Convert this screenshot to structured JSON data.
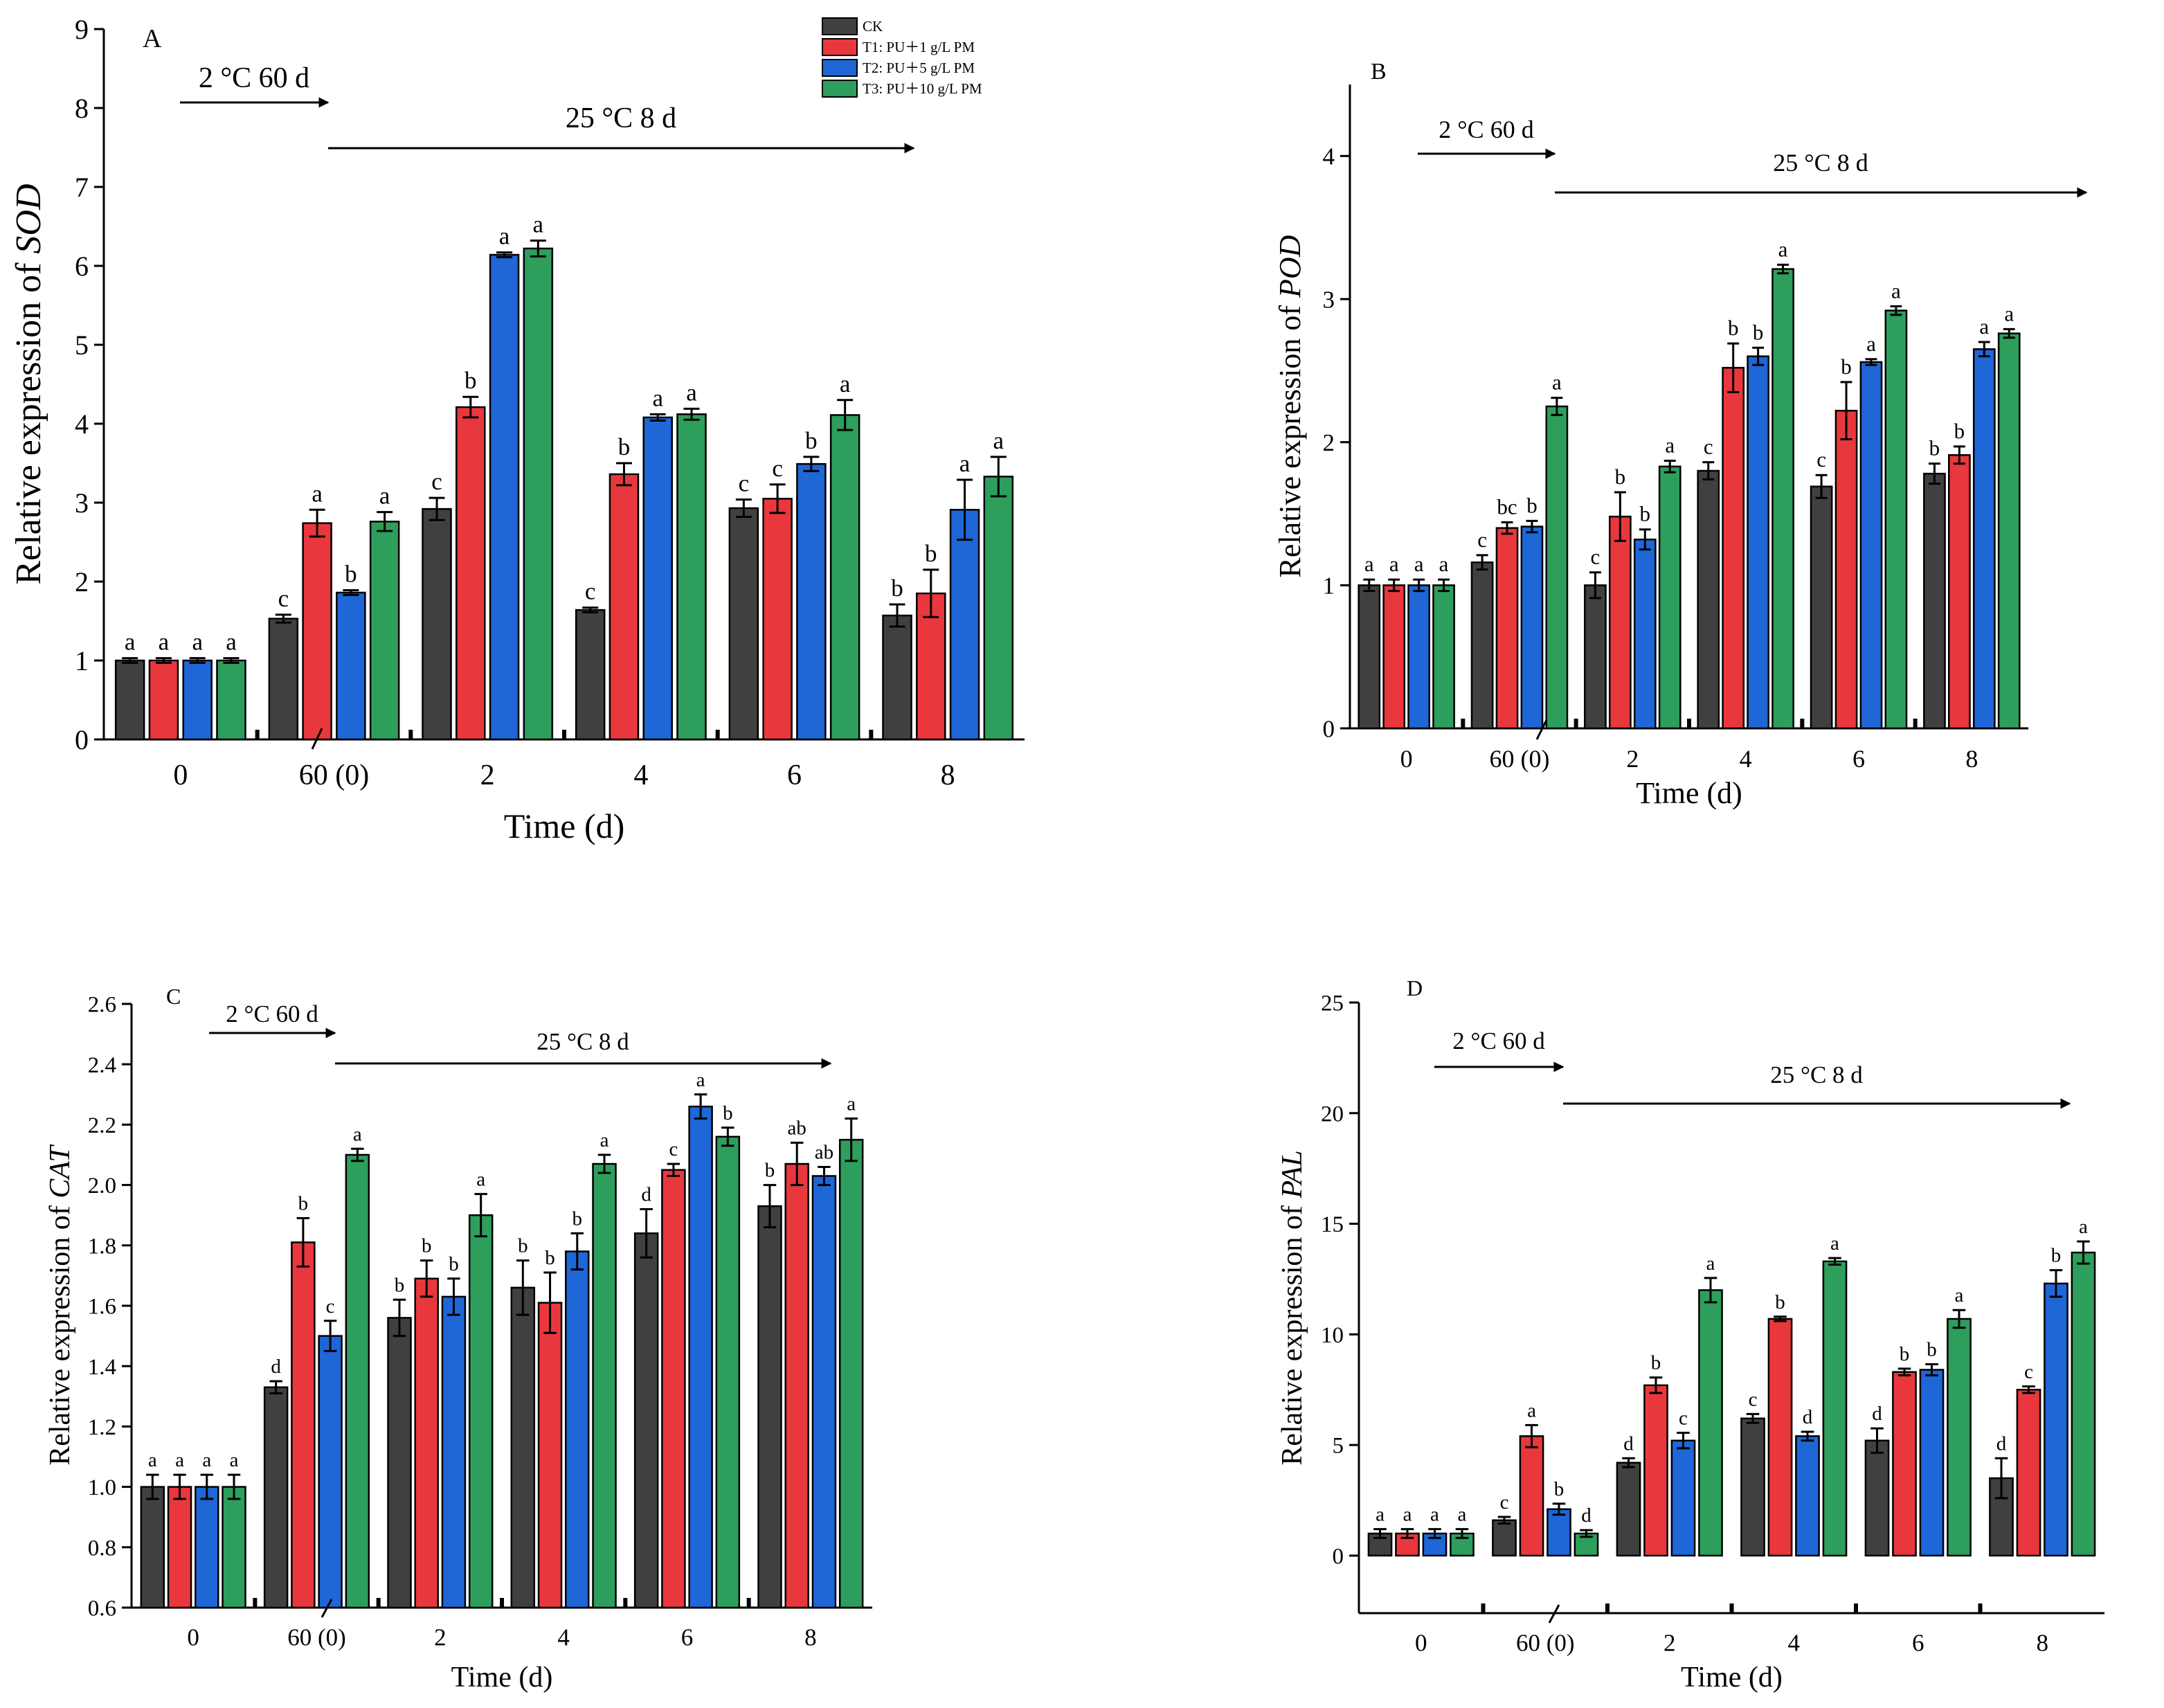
{
  "legend": {
    "items": [
      {
        "label": "CK",
        "color": "#404040"
      },
      {
        "label": "T1: PU＋1 g/L PM",
        "color": "#e8383d"
      },
      {
        "label": "T2: PU＋5 g/L PM",
        "color": "#1f66d6"
      },
      {
        "label": "T3: PU＋10 g/L PM",
        "color": "#2e9e5c"
      }
    ]
  },
  "chart_data": [
    {
      "type": "bar",
      "panel": "A",
      "ylabel_prefix": "Relative expression of ",
      "ylabel_gene": "SOD",
      "xlabel": "Time (d)",
      "categories": [
        "0",
        "60 (0)",
        "2",
        "4",
        "6",
        "8"
      ],
      "ylim": [
        0,
        9
      ],
      "yticks": [
        0,
        1,
        2,
        3,
        4,
        5,
        6,
        7,
        8,
        9
      ],
      "ytick_labels": [
        "0",
        "1",
        "2",
        "3",
        "4",
        "5",
        "6",
        "7",
        "8",
        "9"
      ],
      "annotation_cold": "2 °C 60 d",
      "annotation_warm": "25 °C 8 d",
      "series": [
        {
          "name": "CK",
          "values": [
            1.0,
            1.53,
            2.92,
            1.64,
            2.93,
            1.57
          ],
          "errors": [
            0.03,
            0.05,
            0.14,
            0.03,
            0.11,
            0.14
          ],
          "letters": [
            "a",
            "c",
            "c",
            "c",
            "c",
            "b"
          ]
        },
        {
          "name": "T1: PU＋1 g/L PM",
          "values": [
            1.0,
            2.74,
            4.21,
            3.36,
            3.05,
            1.85
          ],
          "errors": [
            0.03,
            0.17,
            0.13,
            0.14,
            0.18,
            0.3
          ],
          "letters": [
            "a",
            "a",
            "b",
            "b",
            "c",
            "b"
          ]
        },
        {
          "name": "T2: PU＋5 g/L PM",
          "values": [
            1.0,
            1.86,
            6.14,
            4.08,
            3.49,
            2.91
          ],
          "errors": [
            0.03,
            0.03,
            0.03,
            0.04,
            0.09,
            0.38
          ],
          "letters": [
            "a",
            "b",
            "a",
            "a",
            "b",
            "a"
          ]
        },
        {
          "name": "T3: PU＋10 g/L PM",
          "values": [
            1.0,
            2.76,
            6.22,
            4.12,
            4.11,
            3.33
          ],
          "errors": [
            0.03,
            0.12,
            0.1,
            0.07,
            0.19,
            0.25
          ],
          "letters": [
            "a",
            "a",
            "a",
            "a",
            "a",
            "a"
          ]
        }
      ]
    },
    {
      "type": "bar",
      "panel": "B",
      "ylabel_prefix": "Relative expression of ",
      "ylabel_gene": "POD",
      "xlabel": "Time (d)",
      "categories": [
        "0",
        "60 (0)",
        "2",
        "4",
        "6",
        "8"
      ],
      "ylim": [
        0,
        4.5
      ],
      "yticks": [
        0,
        1,
        2,
        3,
        4
      ],
      "ytick_labels": [
        "0",
        "1",
        "2",
        "3",
        "4"
      ],
      "annotation_cold": "2 °C 60 d",
      "annotation_warm": "25 °C 8 d",
      "series": [
        {
          "name": "CK",
          "values": [
            1.0,
            1.16,
            1.0,
            1.8,
            1.69,
            1.78
          ],
          "errors": [
            0.04,
            0.05,
            0.09,
            0.06,
            0.08,
            0.07
          ],
          "letters": [
            "a",
            "c",
            "c",
            "c",
            "c",
            "b"
          ]
        },
        {
          "name": "T1: PU＋1 g/L PM",
          "values": [
            1.0,
            1.4,
            1.48,
            2.52,
            2.22,
            1.91
          ],
          "errors": [
            0.04,
            0.04,
            0.17,
            0.17,
            0.2,
            0.06
          ],
          "letters": [
            "a",
            "bc",
            "b",
            "b",
            "b",
            "b"
          ]
        },
        {
          "name": "T2: PU＋5 g/L PM",
          "values": [
            1.0,
            1.41,
            1.32,
            2.6,
            2.56,
            2.65
          ],
          "errors": [
            0.04,
            0.04,
            0.07,
            0.06,
            0.02,
            0.05
          ],
          "letters": [
            "a",
            "b",
            "b",
            "b",
            "a",
            "a"
          ]
        },
        {
          "name": "T3: PU＋10 g/L PM",
          "values": [
            1.0,
            2.25,
            1.83,
            3.21,
            2.92,
            2.76
          ],
          "errors": [
            0.04,
            0.06,
            0.04,
            0.03,
            0.03,
            0.03
          ],
          "letters": [
            "a",
            "a",
            "a",
            "a",
            "a",
            "a"
          ]
        }
      ]
    },
    {
      "type": "bar",
      "panel": "C",
      "ylabel_prefix": "Relative expression of ",
      "ylabel_gene": "CAT",
      "xlabel": "Time (d)",
      "categories": [
        "0",
        "60 (0)",
        "2",
        "4",
        "6",
        "8"
      ],
      "ylim": [
        0.6,
        2.6
      ],
      "yticks": [
        0.6,
        0.8,
        1.0,
        1.2,
        1.4,
        1.6,
        1.8,
        2.0,
        2.2,
        2.4,
        2.6
      ],
      "ytick_labels": [
        "0.6",
        "0.8",
        "1.0",
        "1.2",
        "1.4",
        "1.6",
        "1.8",
        "2.0",
        "2.2",
        "2.4",
        "2.6"
      ],
      "annotation_cold": "2 °C 60 d",
      "annotation_warm": "25 °C 8 d",
      "series": [
        {
          "name": "CK",
          "values": [
            1.0,
            1.33,
            1.56,
            1.66,
            1.84,
            1.93
          ],
          "errors": [
            0.04,
            0.02,
            0.06,
            0.09,
            0.08,
            0.07
          ],
          "letters": [
            "a",
            "d",
            "b",
            "b",
            "d",
            "b"
          ]
        },
        {
          "name": "T1: PU＋1 g/L PM",
          "values": [
            1.0,
            1.81,
            1.69,
            1.61,
            2.05,
            2.07
          ],
          "errors": [
            0.04,
            0.08,
            0.06,
            0.1,
            0.02,
            0.07
          ],
          "letters": [
            "a",
            "b",
            "b",
            "b",
            "c",
            "ab"
          ]
        },
        {
          "name": "T2: PU＋5 g/L PM",
          "values": [
            1.0,
            1.5,
            1.63,
            1.78,
            2.26,
            2.03
          ],
          "errors": [
            0.04,
            0.05,
            0.06,
            0.06,
            0.04,
            0.03
          ],
          "letters": [
            "a",
            "c",
            "b",
            "b",
            "a",
            "ab"
          ]
        },
        {
          "name": "T3: PU＋10 g/L PM",
          "values": [
            1.0,
            2.1,
            1.9,
            2.07,
            2.16,
            2.15
          ],
          "errors": [
            0.04,
            0.02,
            0.07,
            0.03,
            0.03,
            0.07
          ],
          "letters": [
            "a",
            "a",
            "a",
            "a",
            "b",
            "a"
          ]
        }
      ]
    },
    {
      "type": "bar",
      "panel": "D",
      "ylabel_prefix": "Relative expression of ",
      "ylabel_gene": "PAL",
      "xlabel": "Time (d)",
      "categories": [
        "0",
        "60 (0)",
        "2",
        "4",
        "6",
        "8"
      ],
      "ylim": [
        -2.6,
        25
      ],
      "yticks": [
        0,
        5,
        10,
        15,
        20,
        25
      ],
      "ytick_labels": [
        "0",
        "5",
        "10",
        "15",
        "20",
        "25"
      ],
      "annotation_cold": "2 °C 60 d",
      "annotation_warm": "25 °C 8 d",
      "series": [
        {
          "name": "CK",
          "values": [
            1.0,
            1.6,
            4.2,
            6.2,
            5.2,
            3.5
          ],
          "errors": [
            0.2,
            0.15,
            0.2,
            0.2,
            0.55,
            0.9
          ],
          "letters": [
            "a",
            "c",
            "d",
            "c",
            "d",
            "d"
          ]
        },
        {
          "name": "T1: PU＋1 g/L PM",
          "values": [
            1.0,
            5.4,
            7.7,
            10.7,
            8.3,
            7.5
          ],
          "errors": [
            0.2,
            0.5,
            0.35,
            0.1,
            0.15,
            0.15
          ],
          "letters": [
            "a",
            "a",
            "b",
            "b",
            "b",
            "c"
          ]
        },
        {
          "name": "T2: PU＋5 g/L PM",
          "values": [
            1.0,
            2.1,
            5.2,
            5.4,
            8.4,
            12.3
          ],
          "errors": [
            0.2,
            0.25,
            0.35,
            0.2,
            0.25,
            0.6
          ],
          "letters": [
            "a",
            "b",
            "c",
            "d",
            "b",
            "b"
          ]
        },
        {
          "name": "T3: PU＋10 g/L PM",
          "values": [
            1.0,
            1.0,
            12.0,
            13.3,
            10.7,
            13.7
          ],
          "errors": [
            0.2,
            0.15,
            0.55,
            0.15,
            0.4,
            0.5
          ],
          "letters": [
            "a",
            "d",
            "a",
            "a",
            "a",
            "a"
          ]
        }
      ]
    }
  ]
}
